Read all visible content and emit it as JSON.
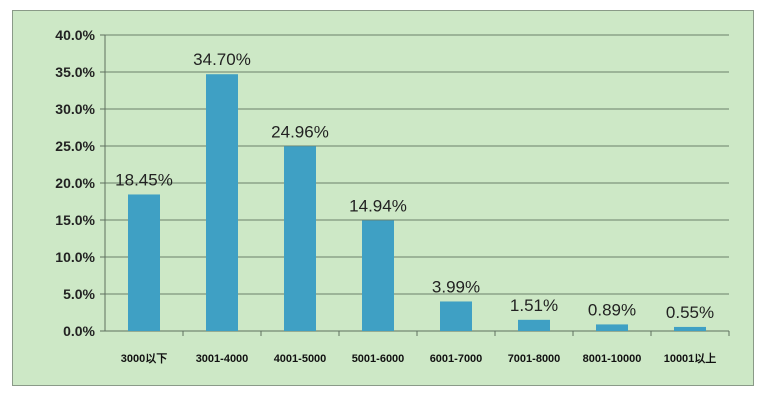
{
  "chart_data": {
    "type": "bar",
    "categories": [
      "3000以下",
      "3001-4000",
      "4001-5000",
      "5001-6000",
      "6001-7000",
      "7001-8000",
      "8001-10000",
      "10001以上"
    ],
    "values": [
      18.45,
      34.7,
      24.96,
      14.94,
      3.99,
      1.51,
      0.89,
      0.55
    ],
    "data_labels": [
      "18.45%",
      "34.70%",
      "24.96%",
      "14.94%",
      "3.99%",
      "1.51%",
      "0.89%",
      "0.55%"
    ],
    "y_ticks": [
      "0.0%",
      "5.0%",
      "10.0%",
      "15.0%",
      "20.0%",
      "25.0%",
      "30.0%",
      "35.0%",
      "40.0%"
    ],
    "ylim": [
      0,
      40
    ],
    "grid": true,
    "bar_color": "#3fa0c4",
    "background_color": "#cde8c6"
  }
}
